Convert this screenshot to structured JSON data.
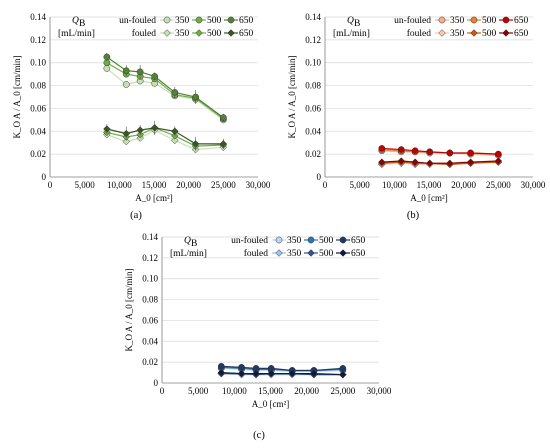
{
  "figure": {
    "panel_labels": [
      "(a)",
      "(b)",
      "(c)"
    ],
    "legend": {
      "title": "Q",
      "title_sub": "B",
      "unit": "[mL/min]",
      "row_labels": [
        "un-fouled",
        "fouled"
      ],
      "flow_labels": [
        "350",
        "500",
        "650"
      ]
    },
    "y_axis_label": "K_O A / A_0 [cm/min]",
    "x_axis_label": "A_0 [cm²]"
  },
  "colors": {
    "a": {
      "unfouled": [
        "#c5e0b4",
        "#70ad47",
        "#548235"
      ],
      "fouled": [
        "#c5e0b4",
        "#70ad47",
        "#385723"
      ]
    },
    "b": {
      "unfouled": [
        "#f4b183",
        "#ed7d31",
        "#c00000"
      ],
      "fouled": [
        "#f8cbad",
        "#c55a11",
        "#8b0000"
      ]
    },
    "c": {
      "unfouled": [
        "#bdd7ee",
        "#2e75b6",
        "#1f3864"
      ],
      "fouled": [
        "#9dc3e6",
        "#2f5597",
        "#0d1b3e"
      ]
    }
  },
  "chart_data": [
    {
      "type": "scatter",
      "panel": "(a)",
      "xlabel": "A0 [cm2]",
      "ylabel": "KOA / A0 [cm/min]",
      "xlim": [
        0,
        30000
      ],
      "ylim": [
        0,
        0.14
      ],
      "xticks": [
        "0",
        "5,000",
        "10,000",
        "15,000",
        "20,000",
        "25,000",
        "30,000"
      ],
      "yticks": [
        "0",
        "0.02",
        "0.04",
        "0.06",
        "0.08",
        "0.10",
        "0.12",
        "0.14"
      ],
      "x": [
        8200,
        11000,
        13000,
        15100,
        18000,
        21000,
        25000
      ],
      "series": [
        {
          "name": "un-fouled 350",
          "values": [
            0.095,
            0.081,
            0.084,
            0.082,
            0.071,
            0.068,
            0.05
          ]
        },
        {
          "name": "un-fouled 500",
          "values": [
            0.1,
            0.09,
            0.088,
            0.086,
            0.072,
            0.069,
            0.051
          ]
        },
        {
          "name": "un-fouled 650",
          "values": [
            0.105,
            0.093,
            0.092,
            0.088,
            0.074,
            0.07,
            0.052
          ]
        },
        {
          "name": "fouled 350",
          "values": [
            0.037,
            0.031,
            0.034,
            0.041,
            0.032,
            0.024,
            0.026
          ]
        },
        {
          "name": "fouled 500",
          "values": [
            0.039,
            0.035,
            0.037,
            0.043,
            0.036,
            0.027,
            0.028
          ]
        },
        {
          "name": "fouled 650",
          "values": [
            0.042,
            0.038,
            0.041,
            0.043,
            0.04,
            0.029,
            0.029
          ]
        }
      ],
      "grid": true,
      "legend_position": "top-left"
    },
    {
      "type": "scatter",
      "panel": "(b)",
      "xlabel": "A0 [cm2]",
      "ylabel": "KOA / A0 [cm/min]",
      "xlim": [
        0,
        30000
      ],
      "ylim": [
        0,
        0.14
      ],
      "xticks": [
        "0",
        "5,000",
        "10,000",
        "15,000",
        "20,000",
        "25,000",
        "30,000"
      ],
      "yticks": [
        "0",
        "0.02",
        "0.04",
        "0.06",
        "0.08",
        "0.10",
        "0.12",
        "0.14"
      ],
      "x": [
        8200,
        11000,
        13000,
        15100,
        18000,
        21000,
        25000
      ],
      "series": [
        {
          "name": "un-fouled 350",
          "values": [
            0.023,
            0.022,
            0.022,
            0.021,
            0.021,
            0.02,
            0.019
          ]
        },
        {
          "name": "un-fouled 500",
          "values": [
            0.024,
            0.023,
            0.022,
            0.022,
            0.021,
            0.021,
            0.02
          ]
        },
        {
          "name": "un-fouled 650",
          "values": [
            0.025,
            0.024,
            0.023,
            0.022,
            0.021,
            0.021,
            0.02
          ]
        },
        {
          "name": "fouled 350",
          "values": [
            0.011,
            0.012,
            0.011,
            0.011,
            0.011,
            0.012,
            0.013
          ]
        },
        {
          "name": "fouled 500",
          "values": [
            0.012,
            0.013,
            0.012,
            0.012,
            0.011,
            0.012,
            0.013
          ]
        },
        {
          "name": "fouled 650",
          "values": [
            0.013,
            0.014,
            0.013,
            0.012,
            0.012,
            0.013,
            0.014
          ]
        }
      ],
      "grid": true,
      "legend_position": "top-left"
    },
    {
      "type": "scatter",
      "panel": "(c)",
      "xlabel": "A0 [cm2]",
      "ylabel": "KOA / A0 [cm/min]",
      "xlim": [
        0,
        30000
      ],
      "ylim": [
        0,
        0.14
      ],
      "xticks": [
        "0",
        "5,000",
        "10,000",
        "15,000",
        "20,000",
        "25,000",
        "30,000"
      ],
      "yticks": [
        "0",
        "0.02",
        "0.04",
        "0.06",
        "0.08",
        "0.10",
        "0.12",
        "0.14"
      ],
      "x": [
        8200,
        11000,
        13000,
        15100,
        18000,
        21000,
        25000
      ],
      "series": [
        {
          "name": "un-fouled 350",
          "values": [
            0.014,
            0.013,
            0.012,
            0.012,
            0.011,
            0.011,
            0.012
          ]
        },
        {
          "name": "un-fouled 500",
          "values": [
            0.015,
            0.014,
            0.013,
            0.013,
            0.012,
            0.012,
            0.013
          ]
        },
        {
          "name": "un-fouled 650",
          "values": [
            0.016,
            0.015,
            0.014,
            0.014,
            0.012,
            0.012,
            0.014
          ]
        },
        {
          "name": "fouled 350",
          "values": [
            0.009,
            0.008,
            0.008,
            0.008,
            0.008,
            0.008,
            0.008
          ]
        },
        {
          "name": "fouled 500",
          "values": [
            0.009,
            0.009,
            0.008,
            0.009,
            0.009,
            0.008,
            0.008
          ]
        },
        {
          "name": "fouled 650",
          "values": [
            0.01,
            0.009,
            0.009,
            0.009,
            0.009,
            0.009,
            0.008
          ]
        }
      ],
      "grid": true,
      "legend_position": "top-left"
    }
  ]
}
